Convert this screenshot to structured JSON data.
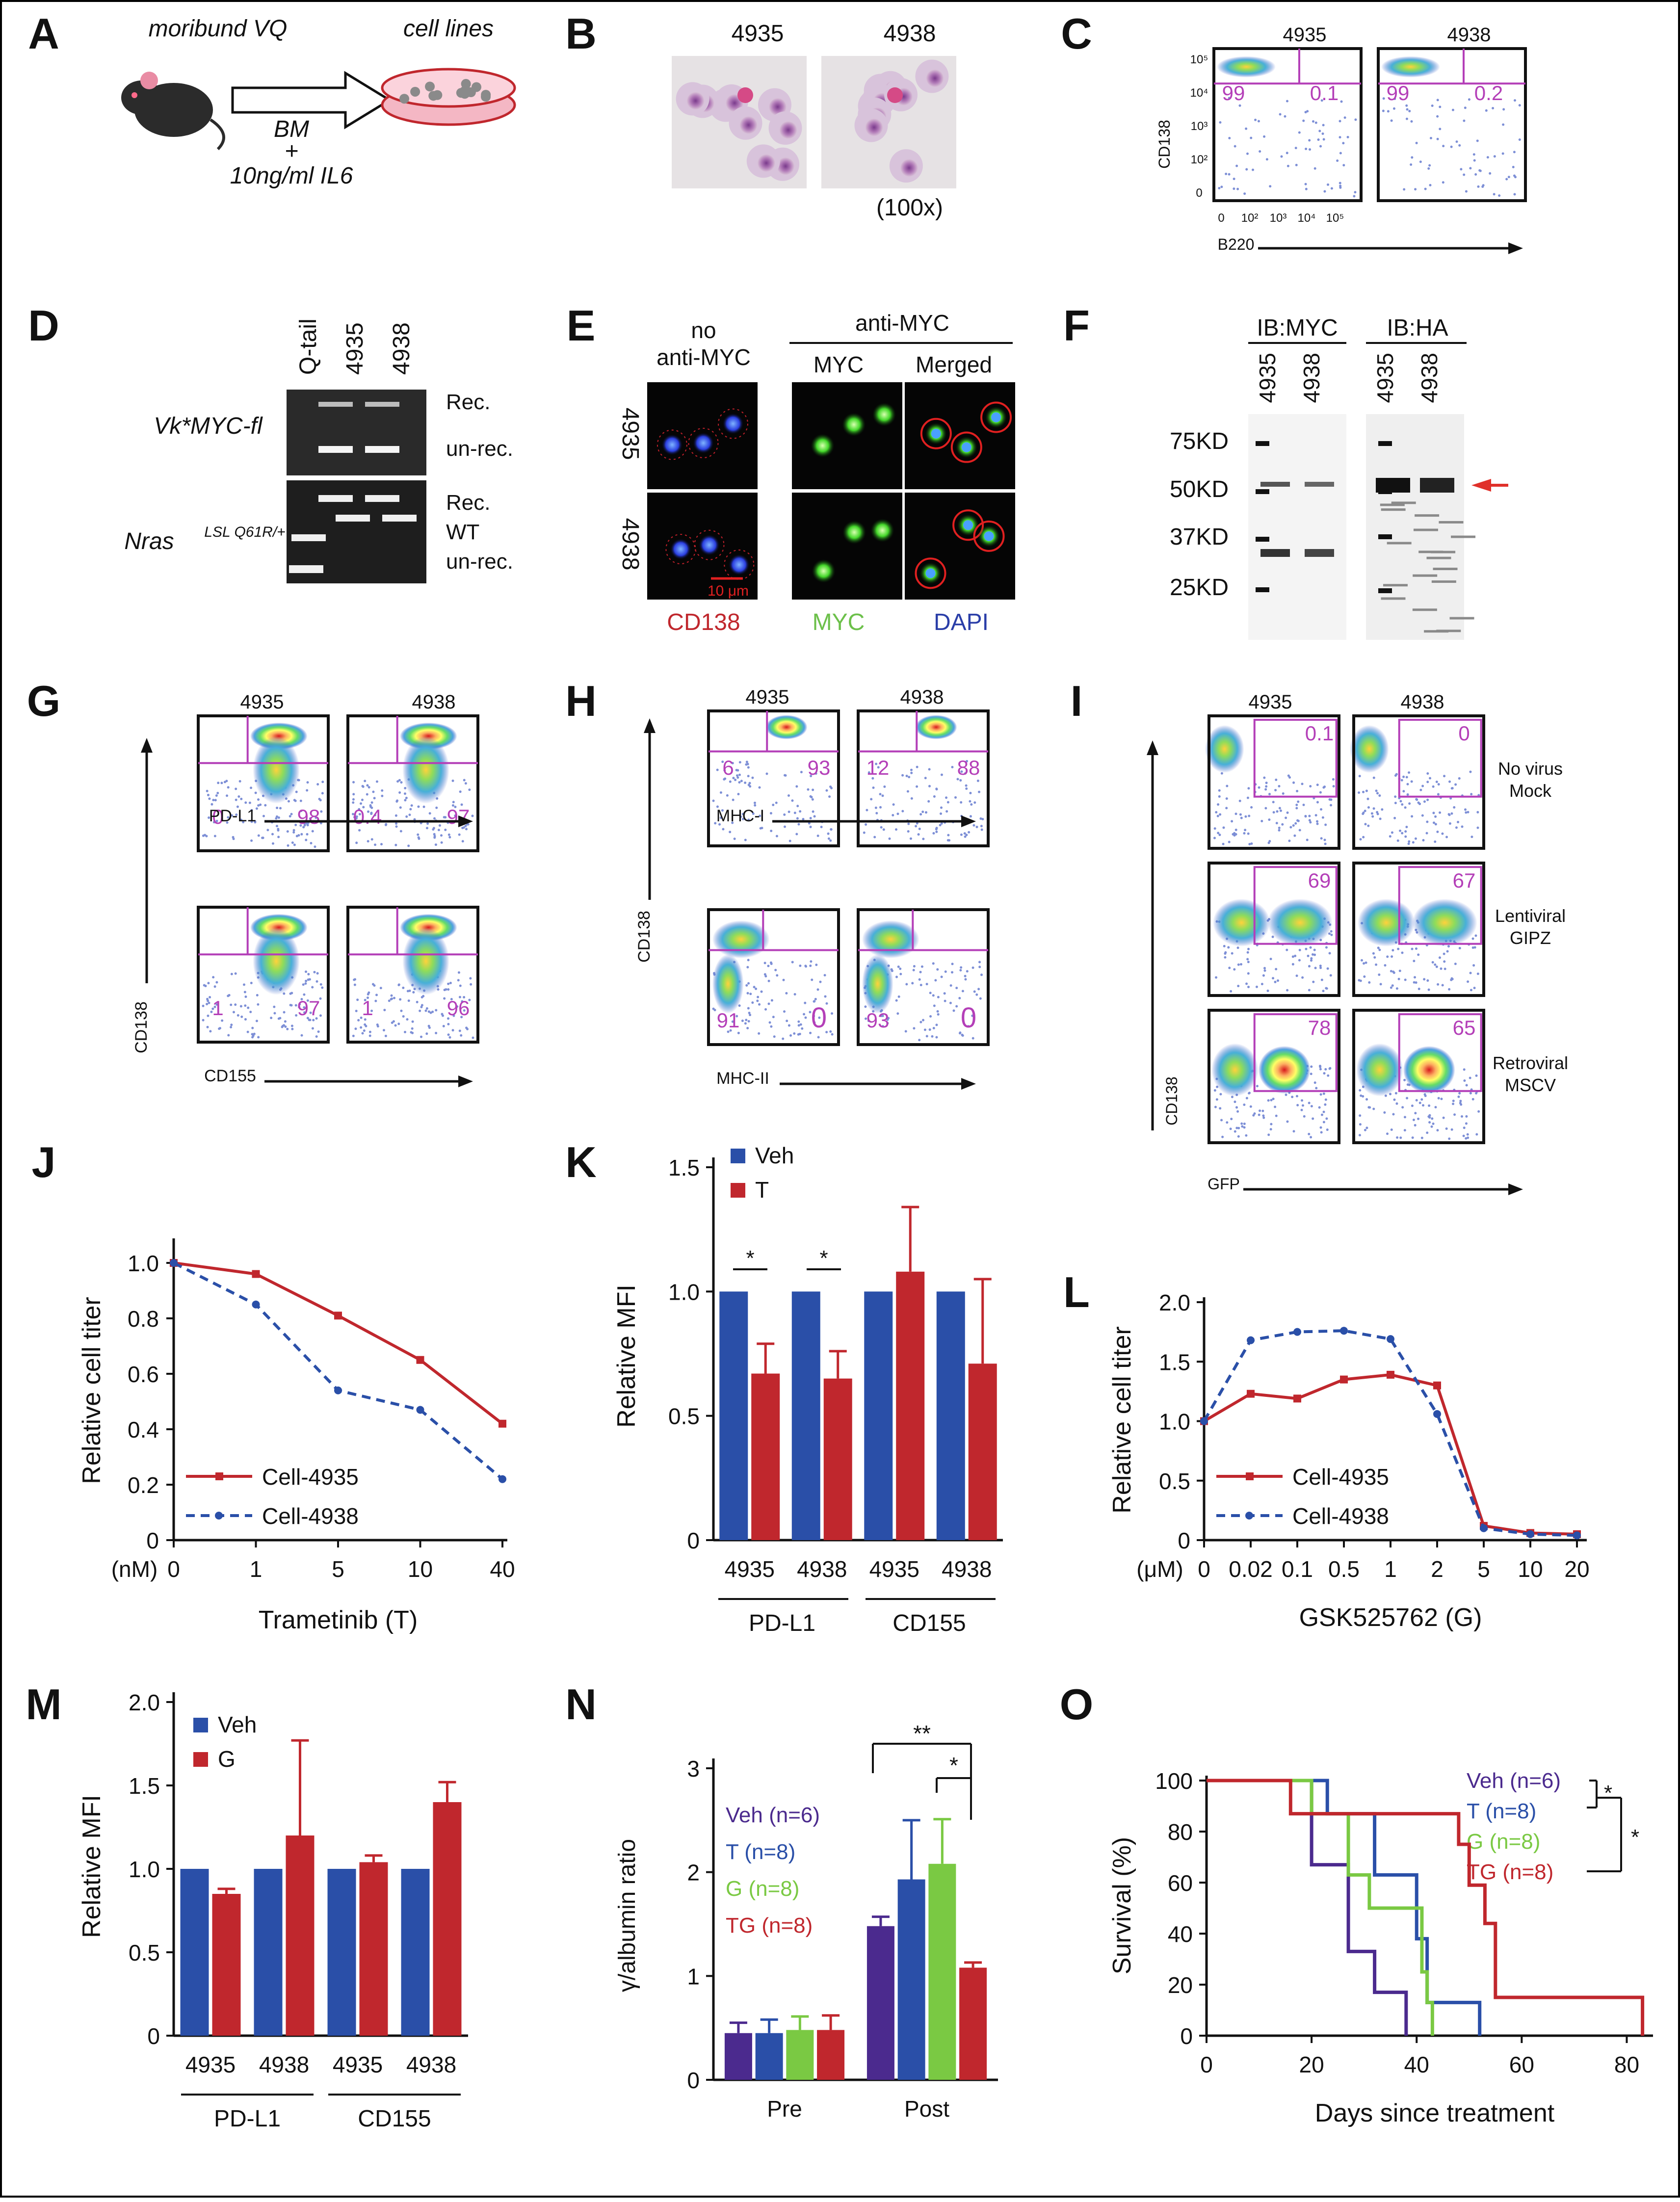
{
  "colors": {
    "blue": "#2a4fa8",
    "red": "#c0272d",
    "green": "#7ac943",
    "purple": "#4b2a8e",
    "magenta": "#b43fb8",
    "veh": "#2a4fa8"
  },
  "panel_letters": [
    "A",
    "B",
    "C",
    "D",
    "E",
    "F",
    "G",
    "H",
    "I",
    "J",
    "K",
    "L",
    "M",
    "N",
    "O"
  ],
  "A": {
    "mouse": "moribund VQ",
    "dish": "cell lines",
    "arrow_line1": "BM",
    "arrow_line2": "+",
    "arrow_line3": "10ng/ml IL6"
  },
  "B": {
    "labels": [
      "4935",
      "4938"
    ],
    "mag": "(100x)"
  },
  "C": {
    "labels": [
      "4935",
      "4938"
    ],
    "ylabel": "CD138",
    "xlabel": "B220",
    "ul": [
      "99",
      "99"
    ],
    "ur": [
      "0.1",
      "0.2"
    ],
    "yticks": [
      "10⁵",
      "10⁴",
      "10³",
      "10²",
      "0"
    ],
    "xticks": [
      "0",
      "10²",
      "10³",
      "10⁴",
      "10⁵"
    ]
  },
  "D": {
    "lanes": [
      "Q-tail",
      "4935",
      "4938"
    ],
    "row1": "Vk*MYC-fl",
    "row2_main": "Nras",
    "row2_sup": "LSL Q61R/+",
    "bands1": [
      "Rec.",
      "un-rec."
    ],
    "bands2": [
      "Rec.",
      "WT",
      "un-rec."
    ]
  },
  "E": {
    "head_no": "no",
    "head_no2": "anti-MYC",
    "head_anti": "anti-MYC",
    "col_myc": "MYC",
    "col_merged": "Merged",
    "rows": [
      "4935",
      "4938"
    ],
    "scale": "10 μm",
    "legend": [
      "CD138",
      "MYC",
      "DAPI"
    ]
  },
  "F": {
    "ib1": "IB:MYC",
    "ib2": "IB:HA",
    "lanes": [
      "4935",
      "4938",
      "4935",
      "4938"
    ],
    "markers": [
      "75KD",
      "50KD",
      "37KD",
      "25KD"
    ]
  },
  "G": {
    "cols": [
      "4935",
      "4938"
    ],
    "ylabel": "CD138",
    "x1": "PD-L1",
    "x2": "CD155",
    "r1": [
      [
        "0",
        "98"
      ],
      [
        "0.4",
        "97"
      ]
    ],
    "r2": [
      [
        "1",
        "97"
      ],
      [
        "1",
        "96"
      ]
    ]
  },
  "H": {
    "cols": [
      "4935",
      "4938"
    ],
    "ylabel": "CD138",
    "x1": "MHC-I",
    "x2": "MHC-II",
    "r1": [
      [
        "6",
        "93"
      ],
      [
        "12",
        "88"
      ]
    ],
    "r2": [
      [
        "91",
        "0"
      ],
      [
        "93",
        "0"
      ]
    ]
  },
  "I": {
    "cols": [
      "4935",
      "4938"
    ],
    "ylabel": "CD138",
    "xlabel": "GFP",
    "vals": [
      [
        "0.1",
        "0"
      ],
      [
        "69",
        "67"
      ],
      [
        "78",
        "65"
      ]
    ],
    "rows": [
      [
        "No virus",
        "Mock"
      ],
      [
        "Lentiviral",
        "GIPZ"
      ],
      [
        "Retroviral",
        "MSCV"
      ]
    ]
  },
  "chart_data": [
    {
      "id": "J",
      "type": "line",
      "xlabel": "Trametinib (T)",
      "ylabel": "Relative cell titer",
      "unit": "(nM)",
      "categories": [
        "0",
        "1",
        "5",
        "10",
        "40"
      ],
      "ylim": [
        0,
        1.0
      ],
      "yticks": [
        "0",
        "0.2",
        "0.4",
        "0.6",
        "0.8",
        "1.0"
      ],
      "series": [
        {
          "name": "Cell-4935",
          "values": [
            1.0,
            0.96,
            0.81,
            0.65,
            0.42
          ]
        },
        {
          "name": "Cell-4938",
          "values": [
            1.0,
            0.85,
            0.54,
            0.47,
            0.22
          ]
        }
      ]
    },
    {
      "id": "K",
      "type": "bar",
      "ylabel": "Relative MFI",
      "ylim": [
        0,
        1.5
      ],
      "yticks": [
        "0",
        "0.5",
        "1.0",
        "1.5"
      ],
      "categories": [
        "4935",
        "4938",
        "4935",
        "4938"
      ],
      "groups": [
        "PD-L1",
        "CD155"
      ],
      "series": [
        {
          "name": "Veh",
          "values": [
            1.0,
            1.0,
            1.0,
            1.0
          ],
          "err": [
            0,
            0,
            0,
            0
          ]
        },
        {
          "name": "T",
          "values": [
            0.67,
            0.65,
            1.08,
            0.71
          ],
          "err": [
            0.12,
            0.11,
            0.26,
            0.34
          ]
        }
      ],
      "sig": [
        "*",
        "*"
      ]
    },
    {
      "id": "L",
      "type": "line",
      "xlabel": "GSK525762 (G)",
      "ylabel": "Relative cell titer",
      "unit": "(μM)",
      "categories": [
        "0",
        "0.02",
        "0.1",
        "0.5",
        "1",
        "2",
        "5",
        "10",
        "20"
      ],
      "ylim": [
        0,
        2.0
      ],
      "yticks": [
        "0",
        "0.5",
        "1.0",
        "1.5",
        "2.0"
      ],
      "series": [
        {
          "name": "Cell-4935",
          "values": [
            1.0,
            1.23,
            1.19,
            1.35,
            1.39,
            1.3,
            0.12,
            0.06,
            0.05
          ]
        },
        {
          "name": "Cell-4938",
          "values": [
            1.0,
            1.68,
            1.75,
            1.76,
            1.69,
            1.06,
            0.1,
            0.05,
            0.04
          ]
        }
      ]
    },
    {
      "id": "M",
      "type": "bar",
      "ylabel": "Relative MFI",
      "ylim": [
        0,
        2.0
      ],
      "yticks": [
        "0",
        "0.5",
        "1.0",
        "1.5",
        "2.0"
      ],
      "categories": [
        "4935",
        "4938",
        "4935",
        "4938"
      ],
      "groups": [
        "PD-L1",
        "CD155"
      ],
      "series": [
        {
          "name": "Veh",
          "values": [
            1.0,
            1.0,
            1.0,
            1.0
          ],
          "err": [
            0,
            0,
            0,
            0
          ]
        },
        {
          "name": "G",
          "values": [
            0.85,
            1.2,
            1.04,
            1.4
          ],
          "err": [
            0.03,
            0.57,
            0.04,
            0.12
          ]
        }
      ]
    },
    {
      "id": "N",
      "type": "bar",
      "ylabel": "γ/albumin ratio",
      "ylim": [
        0,
        3
      ],
      "yticks": [
        "0",
        "1",
        "2",
        "3"
      ],
      "groups": [
        "Pre",
        "Post"
      ],
      "series": [
        {
          "name": "Veh (n=6)",
          "values": [
            0.45,
            1.48
          ],
          "err": [
            0.1,
            0.09
          ]
        },
        {
          "name": "T (n=8)",
          "values": [
            0.45,
            1.93
          ],
          "err": [
            0.13,
            0.57
          ]
        },
        {
          "name": "G (n=8)",
          "values": [
            0.48,
            2.08
          ],
          "err": [
            0.13,
            0.43
          ]
        },
        {
          "name": "TG (n=8)",
          "values": [
            0.48,
            1.08
          ],
          "err": [
            0.14,
            0.05
          ]
        }
      ],
      "sig": [
        "**",
        "*"
      ]
    },
    {
      "id": "O",
      "type": "line",
      "xlabel": "Days since treatment",
      "ylabel": "Survival (%)",
      "xlim": [
        0,
        85
      ],
      "ylim": [
        0,
        100
      ],
      "xticks": [
        "0",
        "20",
        "40",
        "60",
        "80"
      ],
      "yticks": [
        "0",
        "20",
        "40",
        "60",
        "80",
        "100"
      ],
      "series": [
        {
          "name": "Veh (n=6)",
          "points": [
            [
              0,
              100
            ],
            [
              20,
              100
            ],
            [
              20,
              67
            ],
            [
              27,
              67
            ],
            [
              27,
              33
            ],
            [
              32,
              33
            ],
            [
              32,
              17
            ],
            [
              38,
              17
            ],
            [
              38,
              0
            ]
          ]
        },
        {
          "name": "T (n=8)",
          "points": [
            [
              0,
              100
            ],
            [
              23,
              100
            ],
            [
              23,
              87
            ],
            [
              32,
              87
            ],
            [
              32,
              63
            ],
            [
              40,
              63
            ],
            [
              40,
              38
            ],
            [
              42,
              38
            ],
            [
              42,
              13
            ],
            [
              52,
              13
            ],
            [
              52,
              0
            ]
          ]
        },
        {
          "name": "G (n=8)",
          "points": [
            [
              0,
              100
            ],
            [
              20,
              100
            ],
            [
              20,
              87
            ],
            [
              27,
              87
            ],
            [
              27,
              63
            ],
            [
              31,
              63
            ],
            [
              31,
              50
            ],
            [
              41,
              50
            ],
            [
              41,
              25
            ],
            [
              42,
              25
            ],
            [
              42,
              13
            ],
            [
              43,
              13
            ],
            [
              43,
              0
            ]
          ]
        },
        {
          "name": "TG (n=8)",
          "points": [
            [
              0,
              100
            ],
            [
              16,
              100
            ],
            [
              16,
              87
            ],
            [
              48,
              87
            ],
            [
              48,
              75
            ],
            [
              50,
              75
            ],
            [
              50,
              59
            ],
            [
              53,
              59
            ],
            [
              53,
              44
            ],
            [
              55,
              44
            ],
            [
              55,
              15
            ],
            [
              83,
              15
            ],
            [
              83,
              0
            ]
          ]
        }
      ],
      "sig": [
        "*",
        "*"
      ]
    }
  ]
}
